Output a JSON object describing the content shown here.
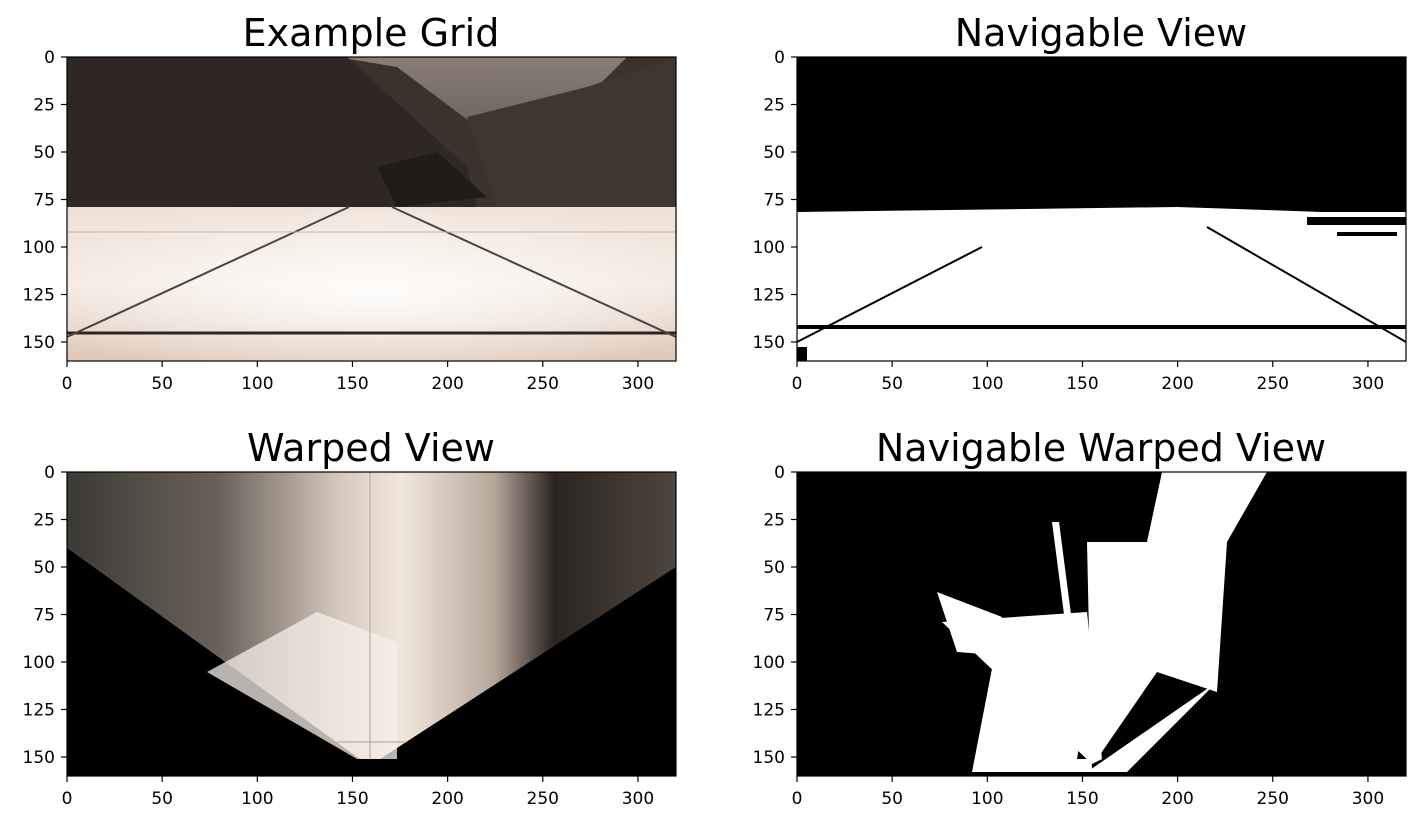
{
  "figure": {
    "panels": [
      {
        "id": "example_grid",
        "title": "Example Grid",
        "image_kind": "camera-rgb",
        "xlim": [
          0,
          320
        ],
        "ylim": [
          160,
          0
        ],
        "x_ticks": [
          0,
          50,
          100,
          150,
          200,
          250,
          300
        ],
        "y_ticks": [
          0,
          25,
          50,
          75,
          100,
          125,
          150
        ]
      },
      {
        "id": "navigable_view",
        "title": "Navigable View",
        "image_kind": "binary-threshold",
        "xlim": [
          0,
          320
        ],
        "ylim": [
          160,
          0
        ],
        "x_ticks": [
          0,
          50,
          100,
          150,
          200,
          250,
          300
        ],
        "y_ticks": [
          0,
          25,
          50,
          75,
          100,
          125,
          150
        ]
      },
      {
        "id": "warped_view",
        "title": "Warped View",
        "image_kind": "perspective-warp-rgb",
        "xlim": [
          0,
          320
        ],
        "ylim": [
          160,
          0
        ],
        "x_ticks": [
          0,
          50,
          100,
          150,
          200,
          250,
          300
        ],
        "y_ticks": [
          0,
          25,
          50,
          75,
          100,
          125,
          150
        ]
      },
      {
        "id": "navigable_warped_view",
        "title": "Navigable Warped View",
        "image_kind": "binary-threshold-warped",
        "xlim": [
          0,
          320
        ],
        "ylim": [
          160,
          0
        ],
        "x_ticks": [
          0,
          50,
          100,
          150,
          200,
          250,
          300
        ],
        "y_ticks": [
          0,
          25,
          50,
          75,
          100,
          125,
          150
        ]
      }
    ],
    "colors": {
      "rock_dark": "#3a322c",
      "ground_light": "#e8d8cc",
      "binary_on": "#ffffff",
      "binary_off": "#000000"
    }
  }
}
